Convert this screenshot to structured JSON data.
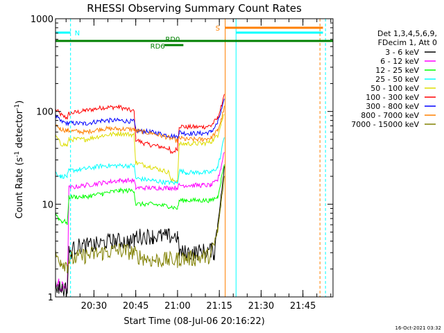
{
  "chart_data": {
    "type": "line",
    "title": "RHESSI Observing Summary Count Rates",
    "xlabel": "Start Time (08-Jul-06 20:16:22)",
    "ylabel_main": "Count Rate (s",
    "ylabel_sup1": "-1",
    "ylabel_mid": " detector",
    "ylabel_sup2": "-1",
    "ylabel_end": ")",
    "yscale": "log",
    "ylim": [
      1,
      1000
    ],
    "xlim_minutes": [
      20.27,
      21.93
    ],
    "y_ticks": [
      {
        "value": 1,
        "label": "1"
      },
      {
        "value": 10,
        "label": "10"
      },
      {
        "value": 100,
        "label": "100"
      },
      {
        "value": 1000,
        "label": "1000"
      }
    ],
    "x_ticks": [
      {
        "minute": 20.5,
        "label": "20:30"
      },
      {
        "minute": 20.75,
        "label": "20:45"
      },
      {
        "minute": 21.0,
        "label": "21:00"
      },
      {
        "minute": 21.25,
        "label": "21:15"
      },
      {
        "minute": 21.5,
        "label": "21:30"
      },
      {
        "minute": 21.75,
        "label": "21:45"
      }
    ],
    "legend": {
      "placement": "right",
      "header1": "Det 1,3,4,5,6,9,",
      "header2": "FDecim 1, Att 0",
      "entries": [
        {
          "label": "3 - 6 keV",
          "color": "#000000"
        },
        {
          "label": "6 - 12 keV",
          "color": "#ff00ff"
        },
        {
          "label": "12 - 25 keV",
          "color": "#00ff00"
        },
        {
          "label": "25 - 50 keV",
          "color": "#00ffff"
        },
        {
          "label": "50 - 100 keV",
          "color": "#dddd00"
        },
        {
          "label": "100 - 300 keV",
          "color": "#ff0000"
        },
        {
          "label": "300 - 800 keV",
          "color": "#0000ff"
        },
        {
          "label": "800 - 7000 keV",
          "color": "#ff8000"
        },
        {
          "label": "7000 - 15000 keV",
          "color": "#808000"
        }
      ]
    },
    "series": [
      {
        "color": "#ff0000",
        "points": [
          [
            20.27,
            105
          ],
          [
            20.31,
            90
          ],
          [
            20.34,
            85
          ],
          [
            20.35,
            95
          ],
          [
            20.45,
            102
          ],
          [
            20.55,
            110
          ],
          [
            20.65,
            112
          ],
          [
            20.74,
            100
          ],
          [
            20.75,
            50
          ],
          [
            20.8,
            45
          ],
          [
            20.95,
            40
          ],
          [
            20.96,
            35
          ],
          [
            21.0,
            40
          ],
          [
            21.01,
            70
          ],
          [
            21.05,
            68
          ],
          [
            21.15,
            68
          ],
          [
            21.2,
            70
          ],
          [
            21.24,
            85
          ],
          [
            21.26,
            110
          ],
          [
            21.28,
            160
          ]
        ]
      },
      {
        "color": "#0000ff",
        "points": [
          [
            20.27,
            90
          ],
          [
            20.3,
            78
          ],
          [
            20.34,
            75
          ],
          [
            20.35,
            75
          ],
          [
            20.45,
            74
          ],
          [
            20.55,
            80
          ],
          [
            20.65,
            80
          ],
          [
            20.74,
            78
          ],
          [
            20.75,
            62
          ],
          [
            20.85,
            60
          ],
          [
            20.95,
            55
          ],
          [
            21.0,
            53
          ],
          [
            21.01,
            60
          ],
          [
            21.05,
            58
          ],
          [
            21.15,
            58
          ],
          [
            21.2,
            60
          ],
          [
            21.24,
            75
          ],
          [
            21.26,
            100
          ],
          [
            21.28,
            130
          ]
        ]
      },
      {
        "color": "#ff8000",
        "points": [
          [
            20.27,
            72
          ],
          [
            20.3,
            65
          ],
          [
            20.34,
            62
          ],
          [
            20.35,
            62
          ],
          [
            20.45,
            60
          ],
          [
            20.55,
            65
          ],
          [
            20.65,
            65
          ],
          [
            20.74,
            64
          ],
          [
            20.75,
            62
          ],
          [
            20.85,
            58
          ],
          [
            20.95,
            52
          ],
          [
            21.0,
            48
          ],
          [
            21.01,
            52
          ],
          [
            21.05,
            50
          ],
          [
            21.15,
            50
          ],
          [
            21.2,
            52
          ],
          [
            21.24,
            62
          ],
          [
            21.26,
            80
          ],
          [
            21.28,
            110
          ]
        ]
      },
      {
        "color": "#dddd00",
        "points": [
          [
            20.27,
            55
          ],
          [
            20.3,
            45
          ],
          [
            20.34,
            43
          ],
          [
            20.35,
            50
          ],
          [
            20.45,
            50
          ],
          [
            20.55,
            55
          ],
          [
            20.65,
            58
          ],
          [
            20.74,
            56
          ],
          [
            20.75,
            28
          ],
          [
            20.85,
            25
          ],
          [
            20.95,
            22
          ],
          [
            20.96,
            18
          ],
          [
            21.0,
            18
          ],
          [
            21.01,
            44
          ],
          [
            21.05,
            45
          ],
          [
            21.15,
            45
          ],
          [
            21.2,
            47
          ],
          [
            21.24,
            55
          ],
          [
            21.26,
            75
          ],
          [
            21.28,
            95
          ]
        ]
      },
      {
        "color": "#00ffff",
        "points": [
          [
            20.27,
            22
          ],
          [
            20.3,
            20
          ],
          [
            20.34,
            20
          ],
          [
            20.35,
            23
          ],
          [
            20.45,
            24
          ],
          [
            20.55,
            26
          ],
          [
            20.65,
            26
          ],
          [
            20.74,
            26
          ],
          [
            20.75,
            19
          ],
          [
            20.85,
            18
          ],
          [
            20.95,
            17
          ],
          [
            21.0,
            17
          ],
          [
            21.01,
            23
          ],
          [
            21.05,
            22
          ],
          [
            21.15,
            22
          ],
          [
            21.2,
            22
          ],
          [
            21.24,
            25
          ],
          [
            21.26,
            35
          ],
          [
            21.28,
            55
          ]
        ]
      },
      {
        "color": "#ff00ff",
        "points": [
          [
            20.27,
            1.5
          ],
          [
            20.29,
            1.3
          ],
          [
            20.31,
            1.2
          ],
          [
            20.33,
            1.4
          ],
          [
            20.34,
            1.1
          ],
          [
            20.35,
            15
          ],
          [
            20.45,
            16
          ],
          [
            20.55,
            17
          ],
          [
            20.65,
            18
          ],
          [
            20.74,
            18
          ],
          [
            20.75,
            15
          ],
          [
            20.85,
            15
          ],
          [
            20.95,
            15
          ],
          [
            21.0,
            15
          ],
          [
            21.01,
            16
          ],
          [
            21.05,
            16
          ],
          [
            21.15,
            16
          ],
          [
            21.2,
            16
          ],
          [
            21.24,
            18
          ],
          [
            21.26,
            25
          ],
          [
            21.28,
            38
          ]
        ]
      },
      {
        "color": "#00ff00",
        "points": [
          [
            20.27,
            8
          ],
          [
            20.29,
            7
          ],
          [
            20.31,
            6.5
          ],
          [
            20.33,
            6.5
          ],
          [
            20.34,
            6
          ],
          [
            20.35,
            12
          ],
          [
            20.45,
            12
          ],
          [
            20.55,
            13
          ],
          [
            20.65,
            14
          ],
          [
            20.74,
            14
          ],
          [
            20.75,
            10
          ],
          [
            20.85,
            10
          ],
          [
            20.95,
            9.5
          ],
          [
            21.0,
            9
          ],
          [
            21.01,
            11
          ],
          [
            21.05,
            11
          ],
          [
            21.15,
            11
          ],
          [
            21.2,
            11
          ],
          [
            21.24,
            12
          ],
          [
            21.26,
            18
          ],
          [
            21.28,
            28
          ]
        ]
      },
      {
        "color": "#000000",
        "points": [
          [
            20.27,
            1.3
          ],
          [
            20.34,
            1.2
          ],
          [
            20.35,
            3
          ],
          [
            20.4,
            3.5
          ],
          [
            20.5,
            3.6
          ],
          [
            20.6,
            4
          ],
          [
            20.7,
            4
          ],
          [
            20.74,
            4
          ],
          [
            20.75,
            4.5
          ],
          [
            20.85,
            4.5
          ],
          [
            20.95,
            4.5
          ],
          [
            21.0,
            4.5
          ],
          [
            21.01,
            3
          ],
          [
            21.1,
            3
          ],
          [
            21.2,
            3.2
          ],
          [
            21.22,
            3
          ],
          [
            21.24,
            6
          ],
          [
            21.26,
            12
          ],
          [
            21.28,
            25
          ]
        ]
      },
      {
        "color": "#808000",
        "points": [
          [
            20.27,
            2.8
          ],
          [
            20.3,
            2.5
          ],
          [
            20.34,
            2.2
          ],
          [
            20.35,
            2.5
          ],
          [
            20.45,
            2.8
          ],
          [
            20.55,
            3
          ],
          [
            20.65,
            3.2
          ],
          [
            20.74,
            3
          ],
          [
            20.75,
            2.8
          ],
          [
            20.85,
            2.5
          ],
          [
            20.95,
            2.5
          ],
          [
            21.0,
            2.5
          ],
          [
            21.01,
            2.6
          ],
          [
            21.1,
            2.6
          ],
          [
            21.2,
            2.8
          ],
          [
            21.24,
            5
          ],
          [
            21.26,
            10
          ],
          [
            21.28,
            20
          ]
        ]
      }
    ],
    "annotations": {
      "N_label": "N",
      "S_label": "S",
      "RD0_label": "RD0",
      "RD6_label": "RD6",
      "timestamp": "16-Oct-2021 03:32"
    }
  }
}
